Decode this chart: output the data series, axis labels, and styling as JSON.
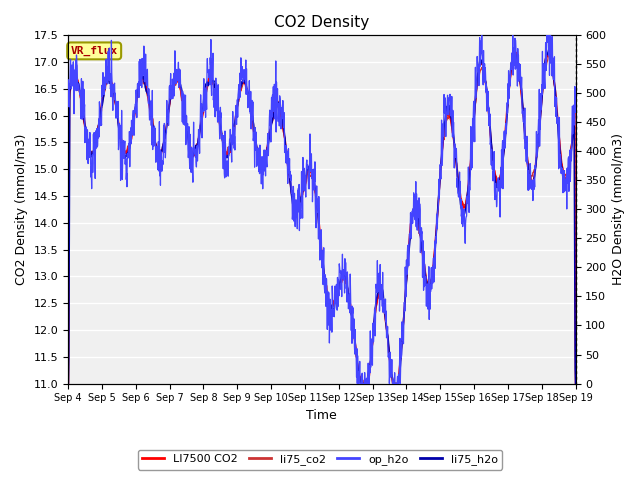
{
  "title": "CO2 Density",
  "xlabel": "Time",
  "ylabel_left": "CO2 Density (mmol/m3)",
  "ylabel_right": "H2O Density (mmol/m3)",
  "ylim_left": [
    11.0,
    17.5
  ],
  "ylim_right": [
    0,
    600
  ],
  "xtick_labels": [
    "Sep 4",
    "Sep 5",
    "Sep 6",
    "Sep 7",
    "Sep 8",
    "Sep 9",
    "Sep 10",
    "Sep 11",
    "Sep 12",
    "Sep 13",
    "Sep 14",
    "Sep 15",
    "Sep 16",
    "Sep 17",
    "Sep 18",
    "Sep 19"
  ],
  "yticks_left": [
    11.0,
    11.5,
    12.0,
    12.5,
    13.0,
    13.5,
    14.0,
    14.5,
    15.0,
    15.5,
    16.0,
    16.5,
    17.0,
    17.5
  ],
  "yticks_right": [
    0,
    50,
    100,
    150,
    200,
    250,
    300,
    350,
    400,
    450,
    500,
    550,
    600
  ],
  "background_color": "#ffffff",
  "plot_bg_color": "#f0f0f0",
  "grid_color": "#ffffff",
  "color_li7500": "#ff0000",
  "color_li75co2": "#cc3333",
  "color_oph2o": "#4444ff",
  "color_li75h2o": "#0000aa",
  "annotation_text": "VR_flux",
  "annotation_bg": "#ffff99",
  "annotation_border": "#999900",
  "annotation_color": "#aa0000",
  "legend_entries": [
    "LI7500 CO2",
    "li75_co2",
    "op_h2o",
    "li75_h2o"
  ],
  "n_days": 15,
  "n_pts_per_day": 96,
  "seed": 0
}
